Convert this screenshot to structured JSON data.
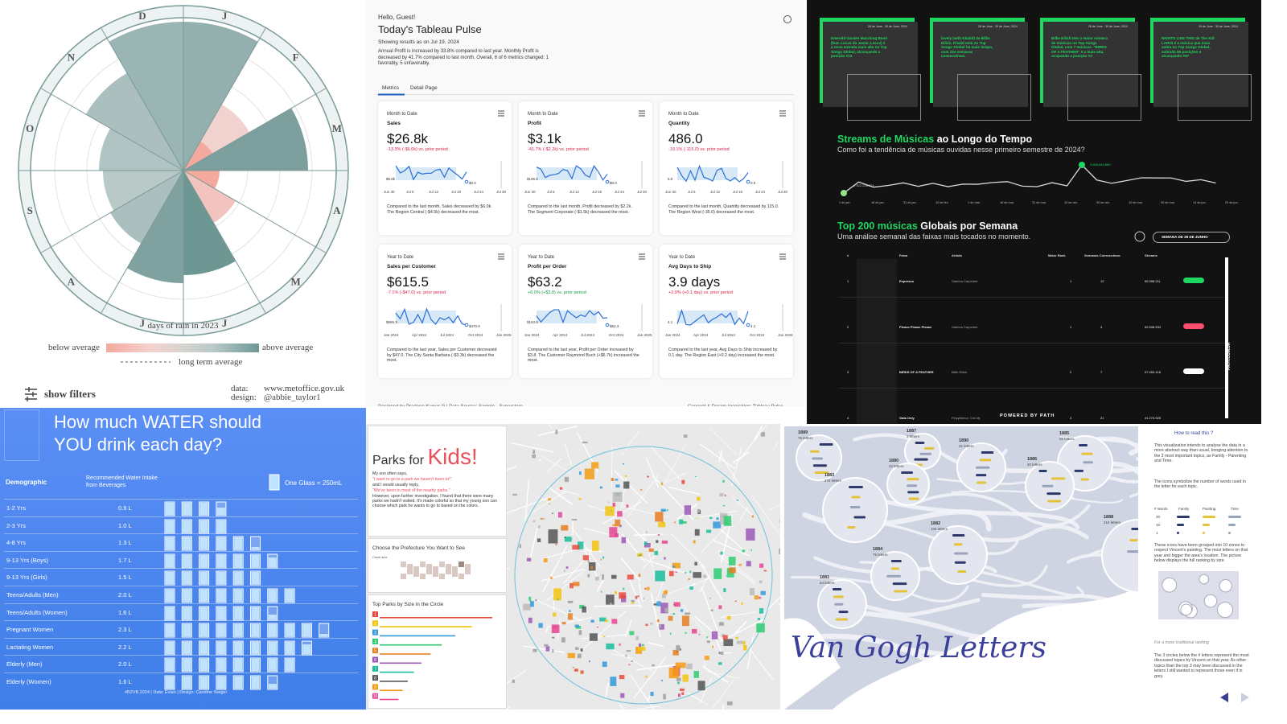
{
  "rain": {
    "months": [
      "J",
      "F",
      "M",
      "A",
      "M",
      "J",
      "J",
      "A",
      "S",
      "O",
      "N",
      "D"
    ],
    "caption": "days of rain in 2023",
    "legend": {
      "below": "below average",
      "above": "above average",
      "long_term": "long term average"
    },
    "filters": "show filters",
    "credits": {
      "data_label": "data:",
      "data": "www.metoffice.gov.uk",
      "design_label": "design:",
      "design": "@abbie_taylor1"
    }
  },
  "pulse": {
    "greeting": "Hello, Guest!",
    "title": "Today's Tableau Pulse",
    "as_of": "Showing results as on Jul 19, 2024",
    "summary": "Annual Profit is increased by 33.8% compared to last year. Monthly Profit is decreased by 41.7% compared to last month. Overall, 6 of 6 metrics changed: 1 favorably, 5 unfavorably.",
    "tabs": [
      "Metrics",
      "Detail Page"
    ],
    "cards": [
      {
        "period": "Month to Date",
        "metric": "Sales",
        "value": "$26.8k",
        "change": "-13.3% (-$6.0k) vs. prior period",
        "change_color": "#d6214a",
        "start": "$6.8k",
        "end": "$0.0",
        "axis": [
          "Jun 30",
          "Jul 6",
          "Jul 12",
          "Jul 18",
          "Jul 24",
          "Jul 30"
        ],
        "note": "Compared to the last month, Sales decreased by $6.0k. The Region Central (-$4.5k) decreased the most."
      },
      {
        "period": "Month to Date",
        "metric": "Profit",
        "value": "$3.1k",
        "change": "-41.7% (-$2.2k) vs. prior period",
        "change_color": "#d6214a",
        "start": "$106.6",
        "end": "$0.0",
        "axis": [
          "Jun 30",
          "Jul 6",
          "Jul 12",
          "Jul 18",
          "Jul 24",
          "Jul 30"
        ],
        "note": "Compared to the last month, Profit decreased by $2.2k. The Segment Corporate (-$1.5k) decreased the most."
      },
      {
        "period": "Month to Date",
        "metric": "Quantity",
        "value": "486.0",
        "change": "-19.1% (-115.0) vs. prior period",
        "change_color": "#d6214a",
        "start": "6.0",
        "end": "0.0",
        "axis": [
          "Jun 30",
          "Jul 6",
          "Jul 12",
          "Jul 18",
          "Jul 24",
          "Jul 30"
        ],
        "note": "Compared to the last month, Quantity decreased by 115.0. The Region West (-35.0) decreased the most."
      },
      {
        "period": "Year to Date",
        "metric": "Sales per Customer",
        "value": "$615.5",
        "change": "-7.1% (-$47.0) vs. prior period",
        "change_color": "#d6214a",
        "start": "$686.3",
        "end": "$470.9",
        "axis": [
          "Jan 2024",
          "Apr 2024",
          "Jul 2024",
          "Oct 2024",
          "Jan 2025"
        ],
        "note": "Compared to the last year, Sales per Customer decreased by $47.0. The City Santa Barbara (-$3.3k) decreased the most."
      },
      {
        "period": "Year to Date",
        "metric": "Profit per Order",
        "value": "$63.2",
        "change": "+6.0% (+$3.8) vs. prior period",
        "change_color": "#1a9b4b",
        "start": "$153.5",
        "end": "$62.3",
        "axis": [
          "Jan 2024",
          "Apr 2024",
          "Jul 2024",
          "Oct 2024",
          "Jan 2025"
        ],
        "note": "Compared to the last year, Profit per Order increased by $3.8. The Customer Raymond Buch (+$6.7k) increased the most."
      },
      {
        "period": "Year to Date",
        "metric": "Avg Days to Ship",
        "value": "3.9 days",
        "change": "+2.9% (+0.1 day) vs. prior period",
        "change_color": "#d6214a",
        "start": "4.1",
        "end": "4.1",
        "axis": [
          "Jan 2024",
          "Apr 2024",
          "Jul 2024",
          "Oct 2024",
          "Jan 2025"
        ],
        "note": "Compared to the last year, Avg Days to Ship increased by 0.1 day. The Region East (+0.2 day) increased the most."
      }
    ],
    "footer": "Designed by Pradeep Kumar G  |  Data Source: Sample - Superstore",
    "inspiration": "Concept & Design Inspiration: Tableau Pulse"
  },
  "spotify": {
    "cards": [
      {
        "dates": "28 de June - 30 de June, 2024",
        "text": "Emerald Garden Marching Band (feat. Lucas da Jamie, Lecce) é a nova entrada mais alta no Top Songs Global, alcançando a posição #13"
      },
      {
        "dates": "28 de June - 30 de June, 2024",
        "text": "lovely (with Khalid) de Billie Eilish, Khalid está no Top Songs Global há mais tempo, com 224 semanas consecutivas."
      },
      {
        "dates": "28 de June - 30 de June, 2024",
        "text": "Billie Eilish tem o maior número de músicas no Top Songs Global, com 7 músicas. \"BIRDS OF A FEATHER\" é a mais alta, ocupando a posição #3"
      },
      {
        "dates": "29 de June - 30 de June, 2024",
        "text": "NIGHTS LIKE THIS de The Kid LAROI é a música que mais subiu no Top Songs Global, subindo 80 posições e alcançando #57"
      }
    ],
    "stream_title_highlight": "Streams de Músicas",
    "stream_title_rest": "ao Longo do Tempo",
    "stream_subtitle": "Como foi a tendência de músicas ouvidas nesse primeiro semestre de 2024?",
    "start_label": "2.322.228.001",
    "peak_label": "3.605.843.880",
    "dates": [
      "1 de jan.",
      "16 de jan.",
      "31 de jan.",
      "15 de fev.",
      "1 de mar.",
      "16 de mar.",
      "31 de mar.",
      "15 de abr.",
      "30 de abr.",
      "15 de mai.",
      "30 de mai.",
      "14 de jun.",
      "29 de jun."
    ],
    "top_title_highlight": "Top 200 músicas",
    "top_title_rest": "Globais por Semana",
    "top_subtitle": "Uma análise semanal das faixas mais tocados no momento.",
    "week": "SEMANA DE 28 DE JUNHO",
    "headers": [
      "#",
      "Faixa",
      "Artista",
      "Maior Rank",
      "Semanas Consecutivas",
      "Streams"
    ],
    "rows": [
      [
        "1",
        "Espresso",
        "Sabrina Carpenter",
        "1",
        "12",
        "65.398.211"
      ],
      [
        "2",
        "Please Please Please",
        "Sabrina Carpenter",
        "1",
        "4",
        "62.508.534"
      ],
      [
        "3",
        "BIRDS OF A FEATHER",
        "Billie Eilish",
        "2",
        "7",
        "57.453.416"
      ],
      [
        "4",
        "Gata Only",
        "FloyyMenor, Cris Mj",
        "3",
        "21",
        "41.273.925"
      ]
    ],
    "powered": "POWERED BY PATH",
    "site": "PATH.COM.BR"
  },
  "water": {
    "title_1": "How much WATER should",
    "title_2": "YOU drink each day?",
    "col_demo": "Demographic",
    "col_intake": "Recommended Water Intake from Beverages",
    "glass": {
      "label": "One Glass = 250mL",
      "ml": 250
    },
    "rows": [
      {
        "group": "1-2 Yrs",
        "intake": 0.9,
        "intake_label": "0.9 L"
      },
      {
        "group": "2-3 Yrs",
        "intake": 1.0,
        "intake_label": "1.0 L"
      },
      {
        "group": "4-8 Yrs",
        "intake": 1.3,
        "intake_label": "1.3 L"
      },
      {
        "group": "9-13 Yrs (Boys)",
        "intake": 1.7,
        "intake_label": "1.7 L"
      },
      {
        "group": "9-13 Yrs (Girls)",
        "intake": 1.5,
        "intake_label": "1.5 L"
      },
      {
        "group": "Teens/Adults (Men)",
        "intake": 2.0,
        "intake_label": "2.0 L"
      },
      {
        "group": "Teens/Adults (Women)",
        "intake": 1.6,
        "intake_label": "1.6 L"
      },
      {
        "group": "Pregnant Women",
        "intake": 2.3,
        "intake_label": "2.3 L"
      },
      {
        "group": "Lactating Women",
        "intake": 2.2,
        "intake_label": "2.2 L"
      },
      {
        "group": "Elderly (Men)",
        "intake": 2.0,
        "intake_label": "2.0 L"
      },
      {
        "group": "Elderly (Women)",
        "intake": 1.6,
        "intake_label": "1.6 L"
      }
    ],
    "footer": "#B2VB 2024 | Data: Evian | Design: Caroline Swiger"
  },
  "parks": {
    "title_a": "Parks for",
    "title_b": "Kids!",
    "story": [
      "My son often says,",
      "\"I want to go to a park we haven't been to!\"",
      "and I would usually reply,",
      "\"We've been to most of the nearby parks.\"",
      "However, upon further investigation, I found that there were many parks we hadn't visited. It's made colorful so that my young son can choose which park he wants to go to based on the colors."
    ],
    "choose": "Choose the Prefecture You Want to See",
    "circle_size": "Circle size",
    "top_title": "Top Parks by Size in the Circle",
    "ranks": [
      "1",
      "2",
      "3",
      "4",
      "5",
      "6",
      "7",
      "8",
      "9",
      "10"
    ]
  },
  "vangogh": {
    "title": "Van Gogh Letters",
    "years": [
      {
        "year": "1889",
        "letters": "76 letters"
      },
      {
        "year": "1887",
        "letters": "3 letters"
      },
      {
        "year": "1890",
        "letters": "21 letters"
      },
      {
        "year": "1885",
        "letters": "99 letters"
      },
      {
        "year": "1883",
        "letters": "276 letters"
      },
      {
        "year": "1880",
        "letters": "22 letters"
      },
      {
        "year": "1886",
        "letters": "40 letters"
      },
      {
        "year": "1888",
        "letters": "216 letters"
      },
      {
        "year": "1882",
        "letters": "105 letters"
      },
      {
        "year": "1884",
        "letters": "76 letters"
      },
      {
        "year": "1881",
        "letters": "64 letters"
      }
    ],
    "how_title": "How to read this ?",
    "how_1": "This visualization intends to analyse the data in a more abstract way than usual, bringing attention to the 3 most important topics, as Family - Parenting and Time.",
    "how_2": "The icons symbolize the number of words used in the letter for each topic.",
    "key_headers": [
      "# Words",
      "Family",
      "Painting",
      "Time"
    ],
    "key_rows": [
      "30",
      "10",
      "1"
    ],
    "how_3": "These icons have been grouped into 10 zones to respect Vincent's painting. The most letters on that year and bigger the area's location. The picture below displays the full ranking by size.",
    "how_4": "For a more traditional ranking",
    "how_5": "The 3 circles below the # letters represent the most discussed topics by Vincent on that year. As other topics than the top 3 may been discussed in the letters I still wanted to represent those even if in grey."
  }
}
